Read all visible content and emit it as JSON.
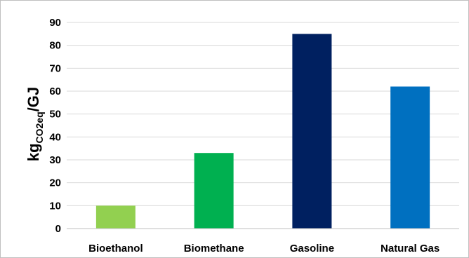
{
  "chart_data": {
    "type": "bar",
    "categories": [
      "Bioethanol",
      "Biomethane",
      "Gasoline",
      "Natural Gas"
    ],
    "values": [
      10,
      33,
      85,
      62
    ],
    "colors": [
      "#92d050",
      "#00b050",
      "#002060",
      "#0070c0"
    ],
    "title": "",
    "xlabel": "",
    "ylabel": {
      "main": "kg",
      "subscript": "CO2eq",
      "suffix": "/GJ"
    },
    "ylim": [
      0,
      90
    ],
    "yticks": [
      "0",
      "10",
      "20",
      "30",
      "40",
      "50",
      "60",
      "70",
      "80",
      "90"
    ],
    "grid": true,
    "gridline_color": "#d9d9d9",
    "legend": "none"
  }
}
